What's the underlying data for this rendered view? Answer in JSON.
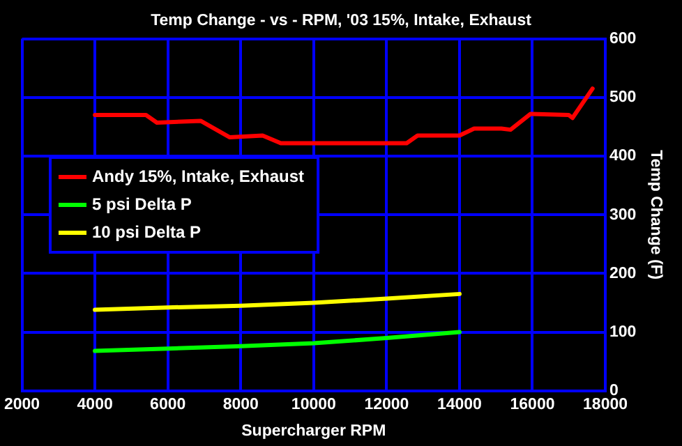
{
  "chart_data": {
    "type": "line",
    "title": "Temp Change - vs - RPM, '03 15%, Intake, Exhaust",
    "xlabel": "Supercharger RPM",
    "ylabel": "Temp Change (F)",
    "xlim": [
      2000,
      18000
    ],
    "xticks": [
      2000,
      4000,
      6000,
      8000,
      10000,
      12000,
      14000,
      16000,
      18000
    ],
    "ylim": [
      0,
      600
    ],
    "yticks": [
      0,
      100,
      200,
      300,
      400,
      500,
      600
    ],
    "grid": true,
    "legend": "left",
    "marker": "none",
    "line_style": "solid",
    "series": [
      {
        "name": "Andy 15%, Intake, Exhaust",
        "color": "#ff0000",
        "x": [
          4000,
          5400,
          5700,
          6900,
          7700,
          8600,
          9100,
          12550,
          12850,
          14000,
          14400,
          15150,
          15400,
          15950,
          17000,
          17100,
          17650
        ],
        "values": [
          470,
          470,
          457,
          460,
          432,
          435,
          422,
          422,
          435,
          435,
          447,
          447,
          445,
          472,
          470,
          465,
          515
        ]
      },
      {
        "name": "5 psi Delta P",
        "color": "#00ff00",
        "x": [
          4000,
          6000,
          8000,
          10000,
          12000,
          14000
        ],
        "values": [
          68,
          72,
          76,
          81,
          90,
          100
        ]
      },
      {
        "name": "10 psi Delta P",
        "color": "#ffff00",
        "x": [
          4000,
          6000,
          8000,
          10000,
          12000,
          14000
        ],
        "values": [
          138,
          142,
          145,
          150,
          157,
          165
        ]
      }
    ]
  }
}
